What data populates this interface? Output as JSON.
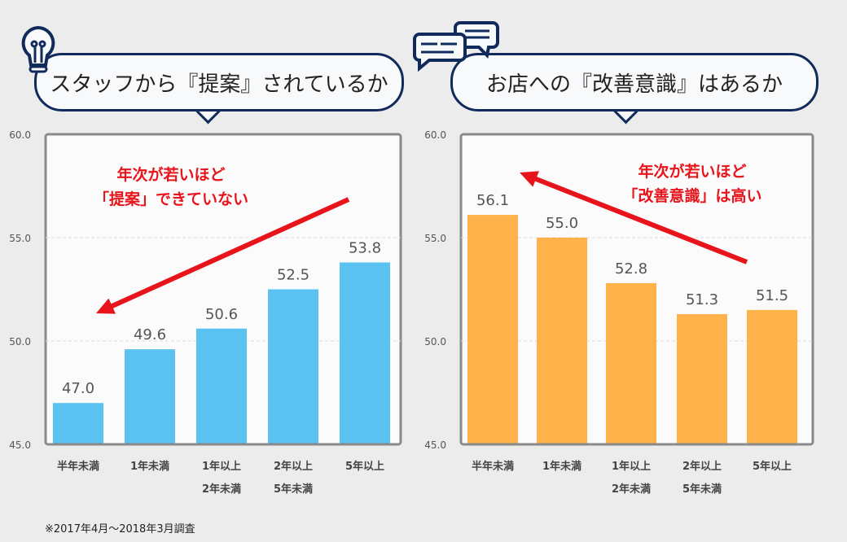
{
  "chart_data": [
    {
      "type": "bar",
      "title": "スタッフから『提案』されているか",
      "categories": [
        "半年未満",
        "1年未満",
        "1年以上\n2年未満",
        "2年以上\n5年未満",
        "5年以上"
      ],
      "values": [
        47.0,
        49.6,
        50.6,
        52.5,
        53.8
      ],
      "ylim": [
        45,
        60
      ],
      "yticks": [
        "45.0",
        "50.0",
        "55.0",
        "60.0"
      ],
      "grid": true,
      "color": "#5bc2f2",
      "annotation": [
        "年次が若いほど",
        "「提案」できていない"
      ],
      "icon": "lightbulb-icon"
    },
    {
      "type": "bar",
      "title": "お店への『改善意識』はあるか",
      "categories": [
        "半年未満",
        "1年未満",
        "1年以上\n2年未満",
        "2年以上\n5年未満",
        "5年以上"
      ],
      "values": [
        56.1,
        55.0,
        52.8,
        51.3,
        51.5
      ],
      "ylim": [
        45,
        60
      ],
      "yticks": [
        "45.0",
        "50.0",
        "55.0",
        "60.0"
      ],
      "grid": true,
      "color": "#ffb14a",
      "annotation": [
        "年次が若いほど",
        "「改善意識」は高い"
      ],
      "icon": "speech-bubbles-icon"
    }
  ],
  "arrow_color": "#e8141b",
  "footnote": "※2017年4月〜2018年3月調査"
}
